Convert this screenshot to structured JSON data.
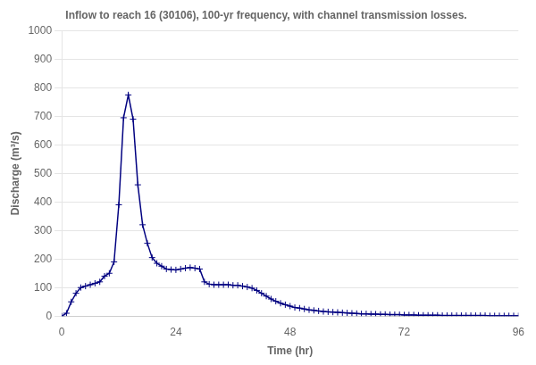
{
  "chart_data": {
    "type": "line",
    "title": "Inflow to reach 16 (30106), 100-yr frequency, with channel transmission losses.",
    "xlabel": "Time (hr)",
    "ylabel": "Discharge (m³/s)",
    "x": [
      0,
      1,
      2,
      3,
      4,
      5,
      6,
      7,
      8,
      9,
      10,
      11,
      12,
      13,
      14,
      15,
      16,
      17,
      18,
      19,
      20,
      21,
      22,
      23,
      24,
      25,
      26,
      27,
      28,
      29,
      30,
      31,
      32,
      33,
      34,
      35,
      36,
      37,
      38,
      39,
      40,
      41,
      42,
      43,
      44,
      45,
      46,
      47,
      48,
      49,
      50,
      51,
      52,
      53,
      54,
      55,
      56,
      57,
      58,
      59,
      60,
      61,
      62,
      63,
      64,
      65,
      66,
      67,
      68,
      69,
      70,
      71,
      72,
      73,
      74,
      75,
      76,
      77,
      78,
      79,
      80,
      81,
      82,
      83,
      84,
      85,
      86,
      87,
      88,
      89,
      90,
      91,
      92,
      93,
      94,
      95,
      96
    ],
    "values": [
      0,
      10,
      50,
      80,
      100,
      105,
      110,
      115,
      120,
      140,
      150,
      190,
      390,
      695,
      775,
      690,
      460,
      320,
      255,
      205,
      185,
      175,
      165,
      163,
      162,
      165,
      168,
      170,
      168,
      165,
      120,
      112,
      110,
      110,
      110,
      110,
      108,
      108,
      105,
      102,
      98,
      90,
      80,
      70,
      60,
      52,
      45,
      40,
      35,
      30,
      28,
      25,
      22,
      20,
      18,
      16,
      15,
      14,
      13,
      12,
      11,
      10,
      9,
      8,
      8,
      7,
      7,
      6,
      6,
      5,
      5,
      5,
      4,
      4,
      4,
      3,
      3,
      3,
      3,
      3,
      2,
      2,
      2,
      2,
      2,
      2,
      2,
      2,
      2,
      2,
      1,
      1,
      1,
      1,
      1,
      1,
      1
    ],
    "color": "#000080",
    "marker": "plus",
    "xlim": [
      0,
      96
    ],
    "ylim": [
      0,
      1000
    ],
    "xticks": [
      0,
      24,
      48,
      72,
      96
    ],
    "yticks": [
      0,
      100,
      200,
      300,
      400,
      500,
      600,
      700,
      800,
      900,
      1000
    ],
    "grid": "y"
  }
}
